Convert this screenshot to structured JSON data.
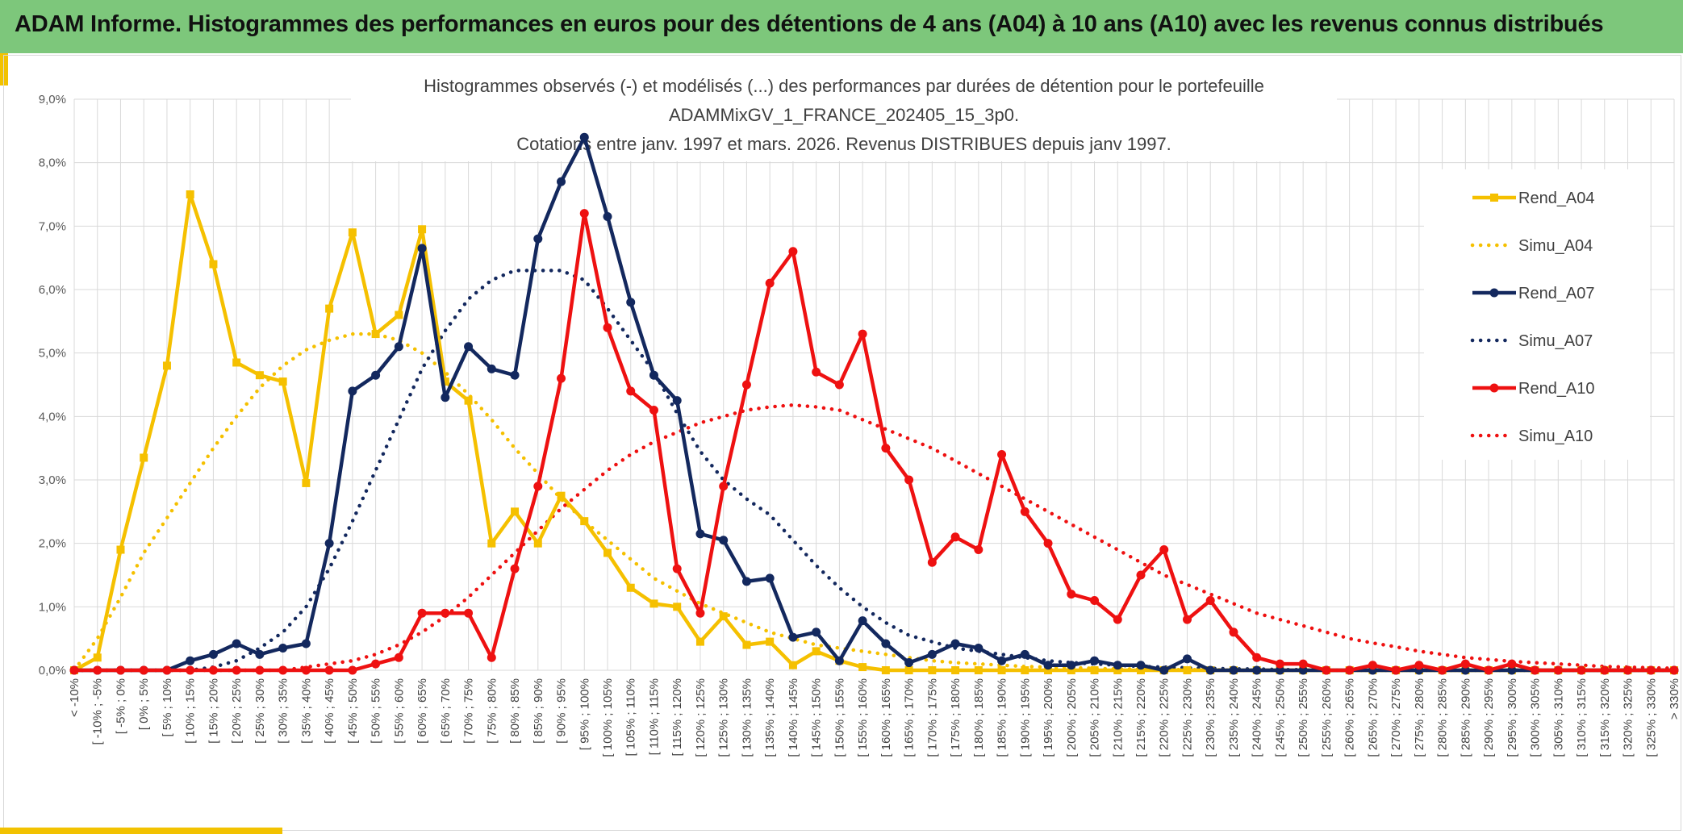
{
  "banner": {
    "title": "ADAM Informe. Histogrammes des performances en euros pour des détentions de 4 ans (A04) à 10 ans (A10) avec les revenus connus distribués"
  },
  "colors": {
    "banner": "#7dc77b",
    "accent": "#f2c200",
    "a04": "#f5c000",
    "a07": "#13285e",
    "a10": "#ee1111",
    "grid": "#d9d9d9"
  },
  "chart_data": {
    "type": "line",
    "title_lines": [
      "Histogrammes observés (-) et modélisés (...) des performances par durées de détention pour le portefeuille",
      "ADAMMixGV_1_FRANCE_202405_15_3p0.",
      "Cotations entre janv. 1997 et mars. 2026. Revenus DISTRIBUES depuis janv 1997."
    ],
    "ylim": [
      0,
      9
    ],
    "yticks": [
      "0,0%",
      "1,0%",
      "2,0%",
      "3,0%",
      "4,0%",
      "5,0%",
      "6,0%",
      "7,0%",
      "8,0%",
      "9,0%"
    ],
    "categories": [
      "< -10%",
      "[ -10% ; -5%",
      "[ -5% ; 0%",
      "[ 0% ; 5%",
      "[ 5% ; 10%",
      "[ 10% ; 15%",
      "[ 15% ; 20%",
      "[ 20% ; 25%",
      "[ 25% ; 30%",
      "[ 30% ; 35%",
      "[ 35% ; 40%",
      "[ 40% ; 45%",
      "[ 45% ; 50%",
      "[ 50% ; 55%",
      "[ 55% ; 60%",
      "[ 60% ; 65%",
      "[ 65% ; 70%",
      "[ 70% ; 75%",
      "[ 75% ; 80%",
      "[ 80% ; 85%",
      "[ 85% ; 90%",
      "[ 90% ; 95%",
      "[ 95% ; 100%",
      "[ 100% ; 105%",
      "[ 105% ; 110%",
      "[ 110% ; 115%",
      "[ 115% ; 120%",
      "[ 120% ; 125%",
      "[ 125% ; 130%",
      "[ 130% ; 135%",
      "[ 135% ; 140%",
      "[ 140% ; 145%",
      "[ 145% ; 150%",
      "[ 150% ; 155%",
      "[ 155% ; 160%",
      "[ 160% ; 165%",
      "[ 165% ; 170%",
      "[ 170% ; 175%",
      "[ 175% ; 180%",
      "[ 180% ; 185%",
      "[ 185% ; 190%",
      "[ 190% ; 195%",
      "[ 195% ; 200%",
      "[ 200% ; 205%",
      "[ 205% ; 210%",
      "[ 210% ; 215%",
      "[ 215% ; 220%",
      "[ 220% ; 225%",
      "[ 225% ; 230%",
      "[ 230% ; 235%",
      "[ 235% ; 240%",
      "[ 240% ; 245%",
      "[ 245% ; 250%",
      "[ 250% ; 255%",
      "[ 255% ; 260%",
      "[ 260% ; 265%",
      "[ 265% ; 270%",
      "[ 270% ; 275%",
      "[ 275% ; 280%",
      "[ 280% ; 285%",
      "[ 285% ; 290%",
      "[ 290% ; 295%",
      "[ 295% ; 300%",
      "[ 300% ; 305%",
      "[ 305% ; 310%",
      "[ 310% ; 315%",
      "[ 315% ; 320%",
      "[ 320% ; 325%",
      "[ 325% ; 330%",
      "> 330%"
    ],
    "series": [
      {
        "name": "Rend_A04",
        "style": "solid",
        "color": "#f5c000",
        "values": [
          0,
          0.2,
          1.9,
          3.35,
          4.8,
          7.5,
          6.4,
          4.85,
          4.65,
          4.55,
          2.95,
          5.7,
          6.9,
          5.3,
          5.6,
          6.95,
          4.55,
          4.25,
          2.0,
          2.5,
          2.0,
          2.75,
          2.35,
          1.85,
          1.3,
          1.05,
          1.0,
          0.45,
          0.85,
          0.4,
          0.45,
          0.08,
          0.3,
          0.15,
          0.05,
          0,
          0,
          0,
          0,
          0,
          0,
          0,
          0,
          0,
          0,
          0,
          0,
          0,
          0,
          0,
          0,
          0,
          0,
          0,
          0,
          0,
          0,
          0,
          0,
          0,
          0,
          0,
          0,
          0,
          0,
          0,
          0,
          0,
          0,
          0
        ]
      },
      {
        "name": "Simu_A04",
        "style": "dotted",
        "color": "#f5c000",
        "values": [
          0,
          0.5,
          1.15,
          1.85,
          2.4,
          2.95,
          3.5,
          4.0,
          4.45,
          4.8,
          5.05,
          5.2,
          5.3,
          5.3,
          5.2,
          5.0,
          4.7,
          4.35,
          3.95,
          3.5,
          3.1,
          2.7,
          2.35,
          2.05,
          1.75,
          1.45,
          1.25,
          1.05,
          0.9,
          0.75,
          0.6,
          0.5,
          0.4,
          0.35,
          0.3,
          0.25,
          0.2,
          0.15,
          0.12,
          0.1,
          0.08,
          0.06,
          0.05,
          0.04,
          0.03,
          0.02,
          0.02,
          0.01,
          0.01,
          0.01,
          0,
          0,
          0,
          0,
          0,
          0,
          0,
          0,
          0,
          0,
          0,
          0,
          0,
          0,
          0,
          0,
          0,
          0,
          0,
          0
        ]
      },
      {
        "name": "Rend_A07",
        "style": "solid",
        "color": "#13285e",
        "values": [
          0,
          0,
          0,
          0,
          0,
          0.15,
          0.25,
          0.42,
          0.25,
          0.35,
          0.42,
          2.0,
          4.4,
          4.65,
          5.1,
          6.65,
          4.3,
          5.1,
          4.75,
          4.65,
          6.8,
          7.7,
          8.4,
          7.15,
          5.8,
          4.65,
          4.25,
          2.15,
          2.05,
          1.4,
          1.45,
          0.52,
          0.6,
          0.15,
          0.78,
          0.42,
          0.12,
          0.25,
          0.42,
          0.35,
          0.15,
          0.25,
          0.08,
          0.08,
          0.15,
          0.08,
          0.08,
          0,
          0.18,
          0,
          0,
          0,
          0,
          0,
          0,
          0,
          0,
          0,
          0,
          0,
          0,
          0,
          0,
          0,
          0,
          0,
          0,
          0,
          0,
          0
        ]
      },
      {
        "name": "Simu_A07",
        "style": "dotted",
        "color": "#13285e",
        "values": [
          0,
          0,
          0,
          0,
          0,
          0,
          0.05,
          0.15,
          0.35,
          0.6,
          1.0,
          1.6,
          2.35,
          3.15,
          3.95,
          4.75,
          5.35,
          5.85,
          6.15,
          6.3,
          6.3,
          6.3,
          6.15,
          5.7,
          5.2,
          4.7,
          4.05,
          3.45,
          3.0,
          2.7,
          2.45,
          2.05,
          1.65,
          1.3,
          1.0,
          0.75,
          0.55,
          0.45,
          0.35,
          0.3,
          0.25,
          0.2,
          0.15,
          0.12,
          0.1,
          0.08,
          0.06,
          0.05,
          0.04,
          0.03,
          0.02,
          0.02,
          0.01,
          0.01,
          0,
          0,
          0,
          0,
          0,
          0,
          0,
          0,
          0,
          0,
          0,
          0,
          0,
          0,
          0,
          0
        ]
      },
      {
        "name": "Rend_A10",
        "style": "solid",
        "color": "#ee1111",
        "values": [
          0,
          0,
          0,
          0,
          0,
          0,
          0,
          0,
          0,
          0,
          0,
          0,
          0,
          0.1,
          0.2,
          0.9,
          0.9,
          0.9,
          0.2,
          1.6,
          2.9,
          4.6,
          7.2,
          5.4,
          4.4,
          4.1,
          1.6,
          0.9,
          2.9,
          4.5,
          6.1,
          6.6,
          4.7,
          4.5,
          5.3,
          3.5,
          3.0,
          1.7,
          2.1,
          1.9,
          3.4,
          2.5,
          2.0,
          1.2,
          1.1,
          0.8,
          1.5,
          1.9,
          0.8,
          1.1,
          0.6,
          0.2,
          0.1,
          0.1,
          0,
          0,
          0.08,
          0,
          0.08,
          0,
          0.1,
          0,
          0.1,
          0,
          0,
          0,
          0,
          0,
          0,
          0
        ]
      },
      {
        "name": "Simu_A10",
        "style": "dotted",
        "color": "#ee1111",
        "values": [
          0,
          0,
          0,
          0,
          0,
          0,
          0,
          0,
          0,
          0,
          0.05,
          0.1,
          0.15,
          0.25,
          0.4,
          0.6,
          0.85,
          1.15,
          1.5,
          1.85,
          2.2,
          2.55,
          2.85,
          3.15,
          3.4,
          3.6,
          3.75,
          3.9,
          4.0,
          4.1,
          4.15,
          4.18,
          4.15,
          4.1,
          3.95,
          3.8,
          3.65,
          3.5,
          3.3,
          3.1,
          2.9,
          2.7,
          2.5,
          2.3,
          2.1,
          1.9,
          1.7,
          1.5,
          1.35,
          1.2,
          1.05,
          0.9,
          0.8,
          0.7,
          0.6,
          0.5,
          0.43,
          0.37,
          0.3,
          0.25,
          0.2,
          0.17,
          0.14,
          0.12,
          0.1,
          0.08,
          0.06,
          0.05,
          0.04,
          0.03
        ]
      }
    ],
    "legend": [
      "Rend_A04",
      "Simu_A04",
      "Rend_A07",
      "Simu_A07",
      "Rend_A10",
      "Simu_A10"
    ],
    "legend_position": "right"
  }
}
